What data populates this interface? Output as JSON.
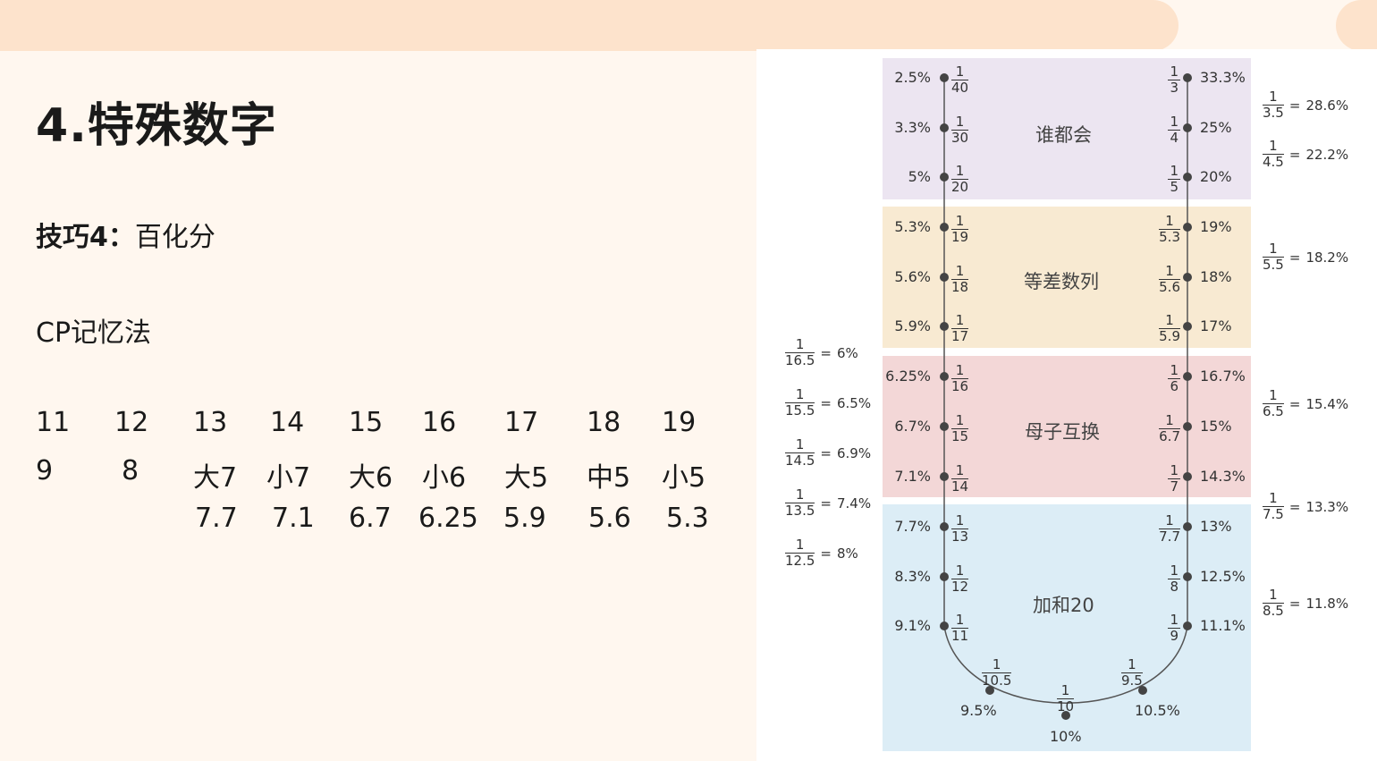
{
  "title": "4.特殊数字",
  "tip": {
    "label": "技巧4：",
    "text": "百化分"
  },
  "method": "CP记忆法",
  "table": {
    "row1": [
      "11",
      "12",
      "13",
      "14",
      "15",
      "16",
      "17",
      "18",
      "19"
    ],
    "row2": [
      "9",
      "8",
      "大7",
      "小7",
      "大6",
      "小6",
      "大5",
      "中5",
      "小5"
    ],
    "row3": [
      "",
      "",
      "7.7",
      "7.1",
      "6.7",
      "6.25",
      "5.9",
      "5.6",
      "5.3"
    ]
  },
  "figure": {
    "bands": [
      {
        "label": "谁都会",
        "color": "#ece5f1"
      },
      {
        "label": "等差数列",
        "color": "#f8ead2"
      },
      {
        "label": "母子互换",
        "color": "#f3d7d7"
      },
      {
        "label": "加和20",
        "color": "#dcedf6"
      }
    ],
    "left_points": [
      {
        "pct": "2.5%",
        "num": "1",
        "den": "40"
      },
      {
        "pct": "3.3%",
        "num": "1",
        "den": "30"
      },
      {
        "pct": "5%",
        "num": "1",
        "den": "20"
      },
      {
        "pct": "5.3%",
        "num": "1",
        "den": "19"
      },
      {
        "pct": "5.6%",
        "num": "1",
        "den": "18"
      },
      {
        "pct": "5.9%",
        "num": "1",
        "den": "17"
      },
      {
        "pct": "6.25%",
        "num": "1",
        "den": "16"
      },
      {
        "pct": "6.7%",
        "num": "1",
        "den": "15"
      },
      {
        "pct": "7.1%",
        "num": "1",
        "den": "14"
      },
      {
        "pct": "7.7%",
        "num": "1",
        "den": "13"
      },
      {
        "pct": "8.3%",
        "num": "1",
        "den": "12"
      },
      {
        "pct": "9.1%",
        "num": "1",
        "den": "11"
      }
    ],
    "right_points": [
      {
        "pct": "33.3%",
        "num": "1",
        "den": "3"
      },
      {
        "pct": "25%",
        "num": "1",
        "den": "4"
      },
      {
        "pct": "20%",
        "num": "1",
        "den": "5"
      },
      {
        "pct": "19%",
        "num": "1",
        "den": "5.3"
      },
      {
        "pct": "18%",
        "num": "1",
        "den": "5.6"
      },
      {
        "pct": "17%",
        "num": "1",
        "den": "5.9"
      },
      {
        "pct": "16.7%",
        "num": "1",
        "den": "6"
      },
      {
        "pct": "15%",
        "num": "1",
        "den": "6.7"
      },
      {
        "pct": "14.3%",
        "num": "1",
        "den": "7"
      },
      {
        "pct": "13%",
        "num": "1",
        "den": "7.7"
      },
      {
        "pct": "12.5%",
        "num": "1",
        "den": "8"
      },
      {
        "pct": "11.1%",
        "num": "1",
        "den": "9"
      }
    ],
    "bottom_points": [
      {
        "pct": "9.5%",
        "num": "1",
        "den": "10.5"
      },
      {
        "pct": "10%",
        "num": "1",
        "den": "10"
      },
      {
        "pct": "10.5%",
        "num": "1",
        "den": "9.5"
      }
    ],
    "outer_left": [
      {
        "num": "1",
        "den": "16.5",
        "eq": "=",
        "pct": "6%"
      },
      {
        "num": "1",
        "den": "15.5",
        "eq": "=",
        "pct": "6.5%"
      },
      {
        "num": "1",
        "den": "14.5",
        "eq": "=",
        "pct": "6.9%"
      },
      {
        "num": "1",
        "den": "13.5",
        "eq": "=",
        "pct": "7.4%"
      },
      {
        "num": "1",
        "den": "12.5",
        "eq": "=",
        "pct": "8%"
      }
    ],
    "outer_right": [
      {
        "num": "1",
        "den": "3.5",
        "eq": "=",
        "pct": "28.6%"
      },
      {
        "num": "1",
        "den": "4.5",
        "eq": "=",
        "pct": "22.2%"
      },
      {
        "num": "1",
        "den": "5.5",
        "eq": "=",
        "pct": "18.2%"
      },
      {
        "num": "1",
        "den": "6.5",
        "eq": "=",
        "pct": "15.4%"
      },
      {
        "num": "1",
        "den": "7.5",
        "eq": "=",
        "pct": "13.3%"
      },
      {
        "num": "1",
        "den": "8.5",
        "eq": "=",
        "pct": "11.8%"
      }
    ]
  }
}
